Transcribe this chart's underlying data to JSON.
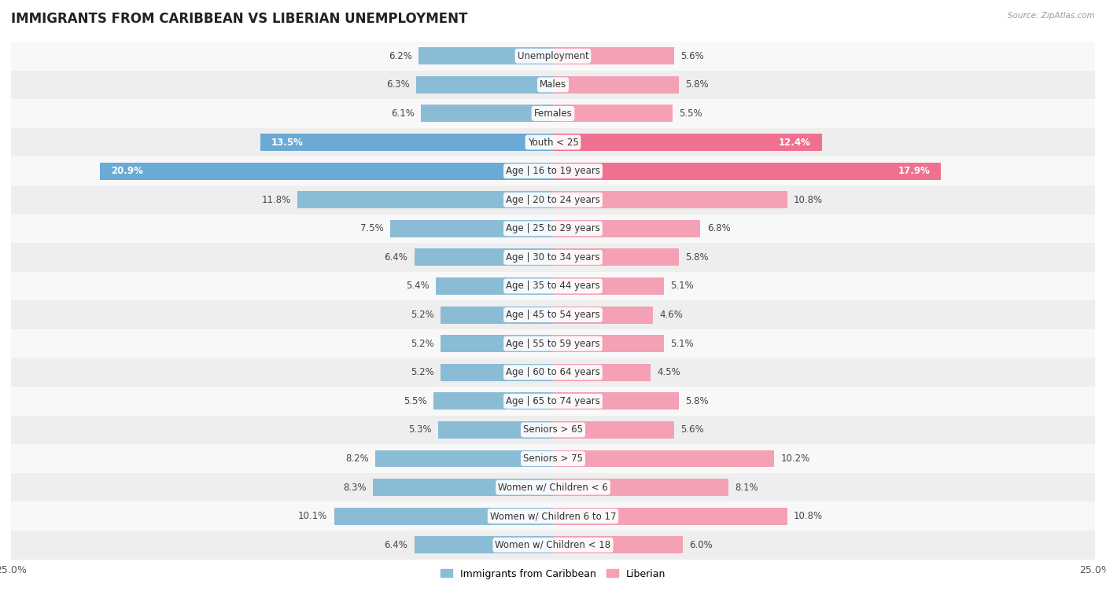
{
  "title": "IMMIGRANTS FROM CARIBBEAN VS LIBERIAN UNEMPLOYMENT",
  "source": "Source: ZipAtlas.com",
  "categories": [
    "Unemployment",
    "Males",
    "Females",
    "Youth < 25",
    "Age | 16 to 19 years",
    "Age | 20 to 24 years",
    "Age | 25 to 29 years",
    "Age | 30 to 34 years",
    "Age | 35 to 44 years",
    "Age | 45 to 54 years",
    "Age | 55 to 59 years",
    "Age | 60 to 64 years",
    "Age | 65 to 74 years",
    "Seniors > 65",
    "Seniors > 75",
    "Women w/ Children < 6",
    "Women w/ Children 6 to 17",
    "Women w/ Children < 18"
  ],
  "caribbean_values": [
    6.2,
    6.3,
    6.1,
    13.5,
    20.9,
    11.8,
    7.5,
    6.4,
    5.4,
    5.2,
    5.2,
    5.2,
    5.5,
    5.3,
    8.2,
    8.3,
    10.1,
    6.4
  ],
  "liberian_values": [
    5.6,
    5.8,
    5.5,
    12.4,
    17.9,
    10.8,
    6.8,
    5.8,
    5.1,
    4.6,
    5.1,
    4.5,
    5.8,
    5.6,
    10.2,
    8.1,
    10.8,
    6.0
  ],
  "caribbean_color": "#8bbcd6",
  "liberian_color": "#f4a0b5",
  "caribbean_highlight_color": "#6aaad4",
  "liberian_highlight_color": "#f07090",
  "row_bg_odd": "#eeeeee",
  "row_bg_even": "#f8f8f8",
  "title_fontsize": 12,
  "label_fontsize": 8.5,
  "value_fontsize": 8.5,
  "xlim": 25.0,
  "bar_height": 0.6
}
